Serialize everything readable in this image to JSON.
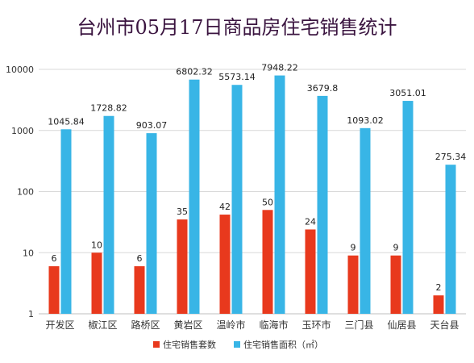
{
  "chart_data": {
    "type": "bar",
    "title": "台州市05月17日商品房住宅销售统计",
    "y_scale": "log",
    "ylim": [
      1,
      10000
    ],
    "y_ticks": [
      "1",
      "10",
      "100",
      "1000",
      "10000"
    ],
    "categories": [
      "开发区",
      "椒江区",
      "路桥区",
      "黄岩区",
      "温岭市",
      "临海市",
      "玉环市",
      "三门县",
      "仙居县",
      "天台县"
    ],
    "series": [
      {
        "name": "住宅销售套数",
        "color": "#e8391d",
        "values": [
          6,
          10,
          6,
          35,
          42,
          50,
          24,
          9,
          9,
          2
        ],
        "labels": [
          "6",
          "10",
          "6",
          "35",
          "42",
          "50",
          "24",
          "9",
          "9",
          "2"
        ]
      },
      {
        "name": "住宅销售面积（㎡）",
        "color": "#38b5e6",
        "values": [
          1045.84,
          1728.82,
          903.07,
          6802.32,
          5573.14,
          7948.22,
          3679.8,
          1093.02,
          3051.01,
          275.34
        ],
        "labels": [
          "1045.84",
          "1728.82",
          "903.07",
          "6802.32",
          "5573.14",
          "7948.22",
          "3679.8",
          "1093.02",
          "3051.01",
          "275.34"
        ]
      }
    ],
    "legend_position": "bottom",
    "grid": true
  }
}
